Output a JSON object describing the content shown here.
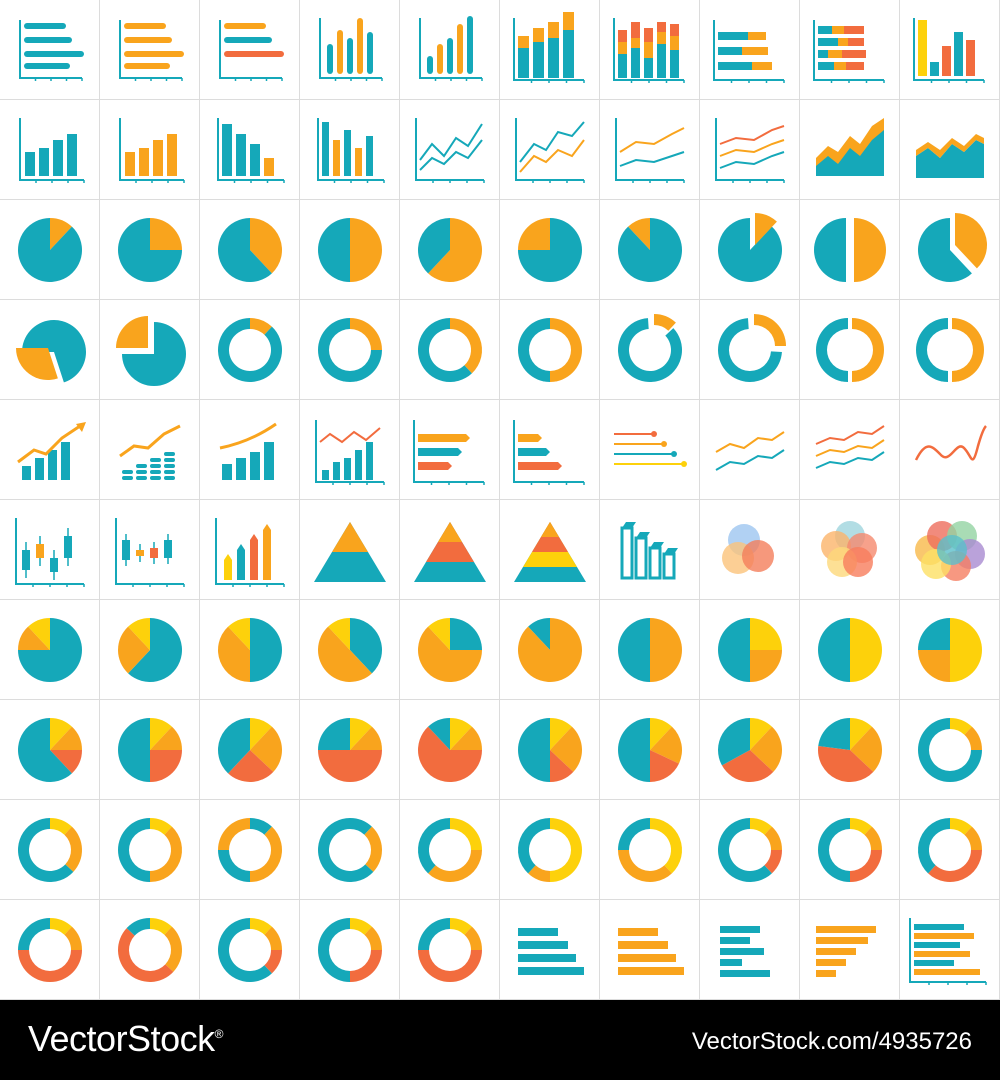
{
  "palette": {
    "teal": "#15a8b9",
    "orange": "#f9a41d",
    "red": "#f26c3e",
    "yellow": "#fdd10b",
    "blue": "#2b8fd0",
    "grid": "#dcdcdc"
  },
  "icons": [
    {
      "kind": "hbar",
      "color": "teal",
      "name": "horizontal-bar-chart-icon"
    },
    {
      "kind": "hbar",
      "color": "orange",
      "name": "horizontal-bar-chart-icon"
    },
    {
      "kind": "hbar",
      "color": "mixed",
      "name": "horizontal-bar-chart-icon"
    },
    {
      "kind": "vbar_round",
      "color": "mixed",
      "name": "bar-chart-icon"
    },
    {
      "kind": "vbar_round",
      "color": "mixed2",
      "name": "bar-chart-icon"
    },
    {
      "kind": "stacked_v",
      "name": "stacked-bar-chart-icon"
    },
    {
      "kind": "stacked_v3",
      "name": "stacked-bar-chart-icon"
    },
    {
      "kind": "stacked_h",
      "name": "stacked-horizontal-bar-icon"
    },
    {
      "kind": "stacked_h3",
      "name": "stacked-horizontal-bar-icon"
    },
    {
      "kind": "vbar_multi",
      "name": "bar-chart-icon"
    },
    {
      "kind": "vbar",
      "color": "teal",
      "name": "bar-chart-icon"
    },
    {
      "kind": "vbar",
      "color": "orange",
      "name": "bar-chart-icon"
    },
    {
      "kind": "vbar_desc",
      "name": "bar-chart-icon"
    },
    {
      "kind": "vbar_pair",
      "name": "grouped-bar-chart-icon"
    },
    {
      "kind": "line_arrows",
      "name": "line-chart-icon"
    },
    {
      "kind": "line_arrows2",
      "name": "line-chart-icon"
    },
    {
      "kind": "line_arrows3",
      "name": "line-chart-icon"
    },
    {
      "kind": "line_arrows4",
      "name": "line-chart-icon"
    },
    {
      "kind": "area_up",
      "name": "area-chart-icon"
    },
    {
      "kind": "area",
      "name": "area-chart-icon"
    },
    {
      "kind": "pie",
      "frac": 0.12,
      "name": "pie-chart-icon"
    },
    {
      "kind": "pie",
      "frac": 0.25,
      "name": "pie-chart-icon"
    },
    {
      "kind": "pie",
      "frac": 0.38,
      "name": "pie-chart-icon"
    },
    {
      "kind": "pie",
      "frac": 0.5,
      "name": "pie-chart-icon"
    },
    {
      "kind": "pie",
      "frac": 0.62,
      "name": "pie-chart-icon"
    },
    {
      "kind": "pie",
      "frac": 0.25,
      "start": 0.75,
      "name": "pie-chart-icon"
    },
    {
      "kind": "pie",
      "frac": 0.12,
      "start": 0.88,
      "name": "pie-chart-icon"
    },
    {
      "kind": "pie_exploded",
      "frac": 0.12,
      "name": "pie-chart-icon"
    },
    {
      "kind": "pie_split",
      "frac": 0.5,
      "name": "pie-chart-icon"
    },
    {
      "kind": "pie_exploded",
      "frac": 0.38,
      "name": "pie-chart-icon"
    },
    {
      "kind": "pie_exploded_left",
      "frac": 0.3,
      "name": "pie-chart-icon"
    },
    {
      "kind": "pie_exploded_tl",
      "frac": 0.25,
      "name": "pie-chart-icon"
    },
    {
      "kind": "donut",
      "frac": 0.12,
      "name": "donut-chart-icon"
    },
    {
      "kind": "donut",
      "frac": 0.25,
      "name": "donut-chart-icon"
    },
    {
      "kind": "donut",
      "frac": 0.38,
      "name": "donut-chart-icon"
    },
    {
      "kind": "donut",
      "frac": 0.5,
      "name": "donut-chart-icon"
    },
    {
      "kind": "donut_exploded",
      "frac": 0.12,
      "name": "donut-chart-icon"
    },
    {
      "kind": "donut_exploded",
      "frac": 0.25,
      "name": "donut-chart-icon"
    },
    {
      "kind": "donut_split",
      "frac": 0.5,
      "name": "donut-chart-icon"
    },
    {
      "kind": "donut_split",
      "frac": 0.5,
      "name": "donut-chart-icon"
    },
    {
      "kind": "growth",
      "name": "growth-chart-icon"
    },
    {
      "kind": "coins",
      "name": "coin-growth-icon"
    },
    {
      "kind": "growth_curve",
      "name": "growth-chart-icon"
    },
    {
      "kind": "bar_line",
      "name": "combo-chart-icon"
    },
    {
      "kind": "arrow_bars",
      "name": "arrow-bar-chart-icon"
    },
    {
      "kind": "arrow_bars2",
      "name": "arrow-bar-chart-icon"
    },
    {
      "kind": "dot_lines",
      "name": "dot-plot-icon"
    },
    {
      "kind": "grid_lines2",
      "name": "line-chart-icon"
    },
    {
      "kind": "grid_lines3",
      "name": "line-chart-icon"
    },
    {
      "kind": "wave",
      "name": "wave-chart-icon"
    },
    {
      "kind": "candle",
      "name": "candlestick-chart-icon"
    },
    {
      "kind": "candle2",
      "name": "candlestick-chart-icon"
    },
    {
      "kind": "arrow_columns",
      "name": "arrow-column-chart-icon"
    },
    {
      "kind": "pyramid2",
      "name": "pyramid-chart-icon"
    },
    {
      "kind": "pyramid3",
      "name": "pyramid-chart-icon"
    },
    {
      "kind": "pyramid4",
      "name": "pyramid-chart-icon"
    },
    {
      "kind": "bars3d",
      "name": "3d-bar-chart-icon"
    },
    {
      "kind": "venn3",
      "name": "venn-diagram-icon"
    },
    {
      "kind": "venn5",
      "name": "venn-diagram-icon"
    },
    {
      "kind": "venn6",
      "name": "venn-diagram-icon"
    },
    {
      "kind": "pie_multi",
      "slices": [
        [
          "teal",
          0.75
        ],
        [
          "orange",
          0.13
        ],
        [
          "yellow",
          0.12
        ]
      ],
      "name": "pie-chart-icon"
    },
    {
      "kind": "pie_multi",
      "slices": [
        [
          "teal",
          0.62
        ],
        [
          "orange",
          0.26
        ],
        [
          "yellow",
          0.12
        ]
      ],
      "name": "pie-chart-icon"
    },
    {
      "kind": "pie_multi",
      "slices": [
        [
          "teal",
          0.5
        ],
        [
          "orange",
          0.38
        ],
        [
          "yellow",
          0.12
        ]
      ],
      "name": "pie-chart-icon"
    },
    {
      "kind": "pie_multi",
      "slices": [
        [
          "teal",
          0.38
        ],
        [
          "orange",
          0.5
        ],
        [
          "yellow",
          0.12
        ]
      ],
      "name": "pie-chart-icon"
    },
    {
      "kind": "pie_multi",
      "slices": [
        [
          "teal",
          0.25
        ],
        [
          "orange",
          0.63
        ],
        [
          "yellow",
          0.12
        ]
      ],
      "name": "pie-chart-icon"
    },
    {
      "kind": "pie_multi",
      "slices": [
        [
          "teal",
          0.12
        ],
        [
          "orange",
          0.88
        ]
      ],
      "start": 0.88,
      "name": "pie-chart-icon"
    },
    {
      "kind": "pie_multi",
      "slices": [
        [
          "orange",
          0.5
        ],
        [
          "teal",
          0.5
        ]
      ],
      "name": "pie-chart-icon"
    },
    {
      "kind": "pie_multi",
      "slices": [
        [
          "yellow",
          0.25
        ],
        [
          "orange",
          0.25
        ],
        [
          "teal",
          0.5
        ]
      ],
      "name": "pie-chart-icon"
    },
    {
      "kind": "pie_multi",
      "slices": [
        [
          "yellow",
          0.5
        ],
        [
          "teal",
          0.5
        ]
      ],
      "name": "pie-chart-icon"
    },
    {
      "kind": "pie_multi",
      "slices": [
        [
          "yellow",
          0.5
        ],
        [
          "orange",
          0.25
        ],
        [
          "teal",
          0.25
        ]
      ],
      "name": "pie-chart-icon"
    },
    {
      "kind": "pie_multi",
      "slices": [
        [
          "yellow",
          0.12
        ],
        [
          "orange",
          0.13
        ],
        [
          "red",
          0.13
        ],
        [
          "teal",
          0.62
        ]
      ],
      "name": "pie-chart-icon"
    },
    {
      "kind": "pie_multi",
      "slices": [
        [
          "yellow",
          0.12
        ],
        [
          "orange",
          0.13
        ],
        [
          "red",
          0.25
        ],
        [
          "teal",
          0.5
        ]
      ],
      "name": "pie-chart-icon"
    },
    {
      "kind": "pie_multi",
      "slices": [
        [
          "yellow",
          0.12
        ],
        [
          "orange",
          0.25
        ],
        [
          "red",
          0.25
        ],
        [
          "teal",
          0.38
        ]
      ],
      "name": "pie-chart-icon"
    },
    {
      "kind": "pie_multi",
      "slices": [
        [
          "yellow",
          0.12
        ],
        [
          "orange",
          0.13
        ],
        [
          "red",
          0.5
        ],
        [
          "teal",
          0.25
        ]
      ],
      "name": "pie-chart-icon"
    },
    {
      "kind": "pie_multi",
      "slices": [
        [
          "yellow",
          0.12
        ],
        [
          "orange",
          0.13
        ],
        [
          "red",
          0.63
        ],
        [
          "teal",
          0.12
        ]
      ],
      "name": "pie-chart-icon"
    },
    {
      "kind": "pie_multi",
      "slices": [
        [
          "yellow",
          0.12
        ],
        [
          "orange",
          0.25
        ],
        [
          "red",
          0.13
        ],
        [
          "teal",
          0.5
        ]
      ],
      "name": "pie-chart-icon"
    },
    {
      "kind": "pie_multi",
      "slices": [
        [
          "yellow",
          0.12
        ],
        [
          "orange",
          0.2
        ],
        [
          "red",
          0.18
        ],
        [
          "teal",
          0.5
        ]
      ],
      "name": "pie-chart-icon"
    },
    {
      "kind": "pie_multi",
      "slices": [
        [
          "yellow",
          0.12
        ],
        [
          "orange",
          0.25
        ],
        [
          "red",
          0.3
        ],
        [
          "teal",
          0.33
        ]
      ],
      "name": "pie-chart-icon"
    },
    {
      "kind": "pie_multi",
      "slices": [
        [
          "yellow",
          0.12
        ],
        [
          "orange",
          0.25
        ],
        [
          "red",
          0.4
        ],
        [
          "teal",
          0.23
        ]
      ],
      "name": "pie-chart-icon"
    },
    {
      "kind": "donut_multi",
      "slices": [
        [
          "yellow",
          0.12
        ],
        [
          "orange",
          0.13
        ],
        [
          "teal",
          0.75
        ]
      ],
      "name": "donut-chart-icon"
    },
    {
      "kind": "donut_multi",
      "slices": [
        [
          "yellow",
          0.12
        ],
        [
          "orange",
          0.25
        ],
        [
          "teal",
          0.63
        ]
      ],
      "name": "donut-chart-icon"
    },
    {
      "kind": "donut_multi",
      "slices": [
        [
          "yellow",
          0.12
        ],
        [
          "orange",
          0.38
        ],
        [
          "teal",
          0.5
        ]
      ],
      "name": "donut-chart-icon"
    },
    {
      "kind": "donut_multi",
      "slices": [
        [
          "teal",
          0.12
        ],
        [
          "orange",
          0.38
        ],
        [
          "teal",
          0.25
        ],
        [
          "orange",
          0.25
        ]
      ],
      "name": "donut-chart-icon"
    },
    {
      "kind": "donut_multi",
      "slices": [
        [
          "teal",
          0.12
        ],
        [
          "orange",
          0.25
        ],
        [
          "teal",
          0.63
        ]
      ],
      "name": "donut-chart-icon"
    },
    {
      "kind": "donut_multi",
      "slices": [
        [
          "yellow",
          0.25
        ],
        [
          "orange",
          0.37
        ],
        [
          "teal",
          0.38
        ]
      ],
      "name": "donut-chart-icon"
    },
    {
      "kind": "donut_multi",
      "slices": [
        [
          "yellow",
          0.5
        ],
        [
          "orange",
          0.12
        ],
        [
          "teal",
          0.38
        ]
      ],
      "name": "donut-chart-icon"
    },
    {
      "kind": "donut_multi",
      "slices": [
        [
          "yellow",
          0.38
        ],
        [
          "orange",
          0.37
        ],
        [
          "teal",
          0.25
        ]
      ],
      "name": "donut-chart-icon"
    },
    {
      "kind": "donut_multi",
      "slices": [
        [
          "yellow",
          0.12
        ],
        [
          "orange",
          0.13
        ],
        [
          "red",
          0.13
        ],
        [
          "teal",
          0.62
        ]
      ],
      "name": "donut-chart-icon"
    },
    {
      "kind": "donut_multi",
      "slices": [
        [
          "yellow",
          0.12
        ],
        [
          "orange",
          0.13
        ],
        [
          "red",
          0.25
        ],
        [
          "teal",
          0.5
        ]
      ],
      "name": "donut-chart-icon"
    },
    {
      "kind": "donut_multi",
      "slices": [
        [
          "yellow",
          0.12
        ],
        [
          "orange",
          0.13
        ],
        [
          "red",
          0.37
        ],
        [
          "teal",
          0.38
        ]
      ],
      "name": "donut-chart-icon"
    },
    {
      "kind": "donut_multi",
      "slices": [
        [
          "yellow",
          0.12
        ],
        [
          "orange",
          0.13
        ],
        [
          "red",
          0.5
        ],
        [
          "teal",
          0.25
        ]
      ],
      "name": "donut-chart-icon"
    },
    {
      "kind": "donut_multi",
      "slices": [
        [
          "yellow",
          0.12
        ],
        [
          "orange",
          0.25
        ],
        [
          "red",
          0.5
        ],
        [
          "teal",
          0.13
        ]
      ],
      "name": "donut-chart-icon"
    },
    {
      "kind": "donut_multi",
      "slices": [
        [
          "yellow",
          0.12
        ],
        [
          "orange",
          0.13
        ],
        [
          "red",
          0.13
        ],
        [
          "teal",
          0.62
        ]
      ],
      "name": "donut-chart-icon"
    },
    {
      "kind": "donut_multi",
      "slices": [
        [
          "yellow",
          0.12
        ],
        [
          "orange",
          0.13
        ],
        [
          "red",
          0.25
        ],
        [
          "teal",
          0.5
        ]
      ],
      "name": "donut-chart-icon"
    },
    {
      "kind": "donut_multi",
      "slices": [
        [
          "yellow",
          0.12
        ],
        [
          "orange",
          0.13
        ],
        [
          "red",
          0.5
        ],
        [
          "teal",
          0.25
        ]
      ],
      "name": "donut-chart-icon"
    },
    {
      "kind": "hbar_stairs",
      "color": "teal",
      "name": "horizontal-bar-chart-icon"
    },
    {
      "kind": "hbar_stairs",
      "color": "orange",
      "name": "horizontal-bar-chart-icon"
    },
    {
      "kind": "hbar_gaps",
      "color": "teal",
      "name": "horizontal-bar-chart-icon"
    },
    {
      "kind": "hbar_desc",
      "color": "orange",
      "name": "horizontal-bar-chart-icon"
    },
    {
      "kind": "hbar_axis",
      "name": "horizontal-bar-chart-icon"
    }
  ],
  "footer": {
    "brand": "VectorStock",
    "brand_mark": "®",
    "credit": "VectorStock.com/4935726"
  }
}
